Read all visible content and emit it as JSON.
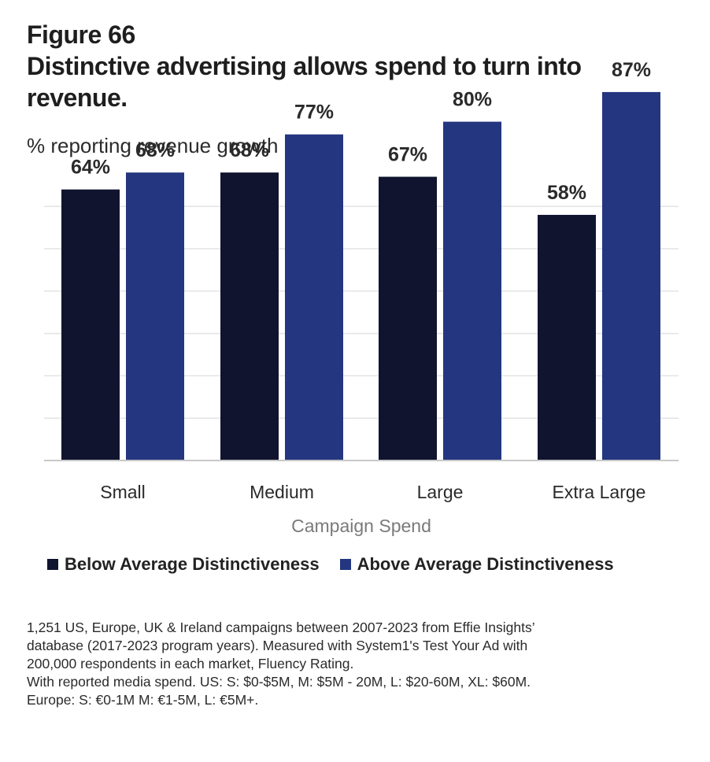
{
  "figure": {
    "label": "Figure 66",
    "title": "Distinctive advertising allows spend to turn into revenue.",
    "subtitle": "% reporting revenue growth"
  },
  "colors": {
    "below": "#11142f",
    "above": "#24367f",
    "grid": "#e3e3e3",
    "axis": "#c8c8c8"
  },
  "chart_data": {
    "type": "bar",
    "title": "Distinctive advertising allows spend to turn into revenue.",
    "ylabel": "% reporting revenue growth",
    "xlabel": "Campaign Spend",
    "categories": [
      "Small",
      "Medium",
      "Large",
      "Extra Large"
    ],
    "series": [
      {
        "name": "Below Average Distinctiveness",
        "values": [
          64,
          68,
          67,
          58
        ],
        "labels": [
          "64%",
          "68%",
          "67%",
          "58%"
        ]
      },
      {
        "name": "Above Average Distinctiveness",
        "values": [
          68,
          77,
          80,
          87
        ],
        "labels": [
          "68%",
          "77%",
          "80%",
          "87%"
        ]
      }
    ],
    "ylim": [
      0,
      100
    ],
    "grid": true,
    "legend": "bottom"
  },
  "footnote": [
    "1,251 US, Europe, UK & Ireland campaigns between 2007-2023 from Effie Insights’",
    "database  (2017-2023 program years). Measured with System1's Test Your Ad with",
    "200,000 respondents in each market, Fluency Rating.",
    "With reported media spend. US: S: $0-$5M, M: $5M - 20M, L: $20-60M, XL: $60M.",
    "Europe: S: €0-1M M: €1-5M, L: €5M+."
  ]
}
